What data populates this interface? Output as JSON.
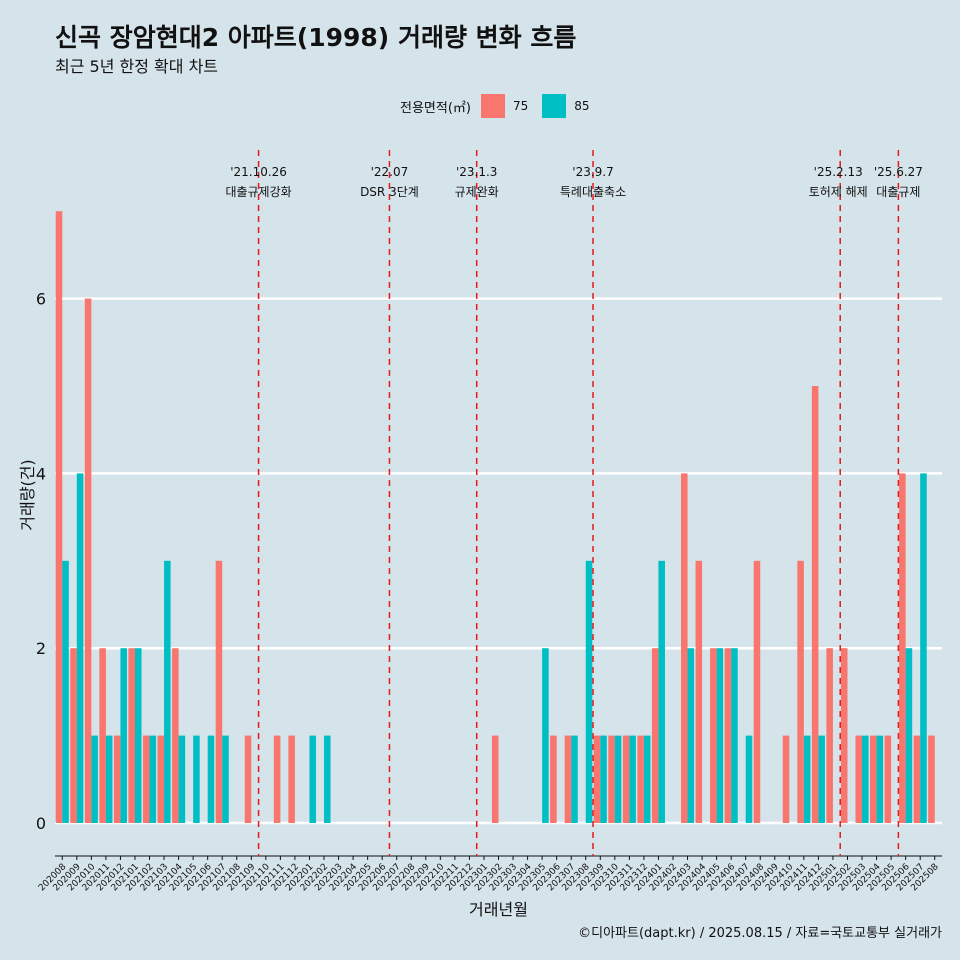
{
  "title": "신곡 장암현대2 아파트(1998) 거래량 변화 흐름",
  "subtitle": "최근 5년 한정 확대 차트",
  "footer": "©디아파트(dapt.kr) / 2025.08.15 / 자료=국토교통부 실거래가",
  "legend": {
    "title": "전용면적(㎡)",
    "items": [
      {
        "label": "75",
        "color": "#f8766d"
      },
      {
        "label": "85",
        "color": "#00bfc4"
      }
    ]
  },
  "chart_data": {
    "type": "bar",
    "xlabel": "거래년월",
    "ylabel": "거래량(건)",
    "ylim": [
      0,
      7
    ],
    "yticks": [
      0,
      2,
      4,
      6
    ],
    "categories": [
      "202008",
      "202009",
      "202010",
      "202011",
      "202012",
      "202101",
      "202102",
      "202103",
      "202104",
      "202105",
      "202106",
      "202107",
      "202108",
      "202109",
      "202110",
      "202111",
      "202112",
      "202201",
      "202202",
      "202203",
      "202204",
      "202205",
      "202206",
      "202207",
      "202208",
      "202209",
      "202210",
      "202211",
      "202212",
      "202301",
      "202302",
      "202303",
      "202304",
      "202305",
      "202306",
      "202307",
      "202308",
      "202309",
      "202310",
      "202311",
      "202312",
      "202401",
      "202402",
      "202403",
      "202404",
      "202405",
      "202406",
      "202407",
      "202408",
      "202409",
      "202410",
      "202411",
      "202412",
      "202501",
      "202502",
      "202503",
      "202504",
      "202505",
      "202506",
      "202507",
      "202508"
    ],
    "series": [
      {
        "name": "75",
        "color": "#f8766d",
        "values": [
          7,
          2,
          6,
          2,
          1,
          2,
          1,
          1,
          2,
          0,
          0,
          3,
          0,
          1,
          0,
          1,
          1,
          0,
          0,
          0,
          0,
          0,
          0,
          0,
          0,
          0,
          0,
          0,
          0,
          0,
          1,
          0,
          0,
          0,
          1,
          1,
          0,
          1,
          1,
          1,
          1,
          2,
          0,
          4,
          3,
          2,
          2,
          0,
          3,
          0,
          1,
          3,
          5,
          2,
          2,
          1,
          1,
          1,
          4,
          1,
          1
        ]
      },
      {
        "name": "85",
        "color": "#00bfc4",
        "values": [
          3,
          4,
          1,
          1,
          2,
          2,
          1,
          3,
          1,
          1,
          1,
          1,
          0,
          0,
          0,
          0,
          0,
          1,
          1,
          0,
          0,
          0,
          0,
          0,
          0,
          0,
          0,
          0,
          0,
          0,
          0,
          0,
          0,
          2,
          0,
          1,
          3,
          1,
          1,
          1,
          1,
          3,
          0,
          2,
          0,
          2,
          2,
          1,
          0,
          0,
          0,
          1,
          1,
          0,
          0,
          1,
          1,
          0,
          2,
          4,
          0
        ]
      }
    ],
    "events": [
      {
        "date": "'21.10.26",
        "label": "대출규제강화",
        "at": "202110"
      },
      {
        "date": "'22.07",
        "label": "DSR 3단계",
        "at": "202207"
      },
      {
        "date": "'23.1.3",
        "label": "규제완화",
        "at": "202301"
      },
      {
        "date": "'23.9.7",
        "label": "특례대출축소",
        "at": "202309"
      },
      {
        "date": "'25.2.13",
        "label": "토허제 해제",
        "at": "202502"
      },
      {
        "date": "'25.6.27",
        "label": "대출규제",
        "at": "202506"
      }
    ]
  }
}
